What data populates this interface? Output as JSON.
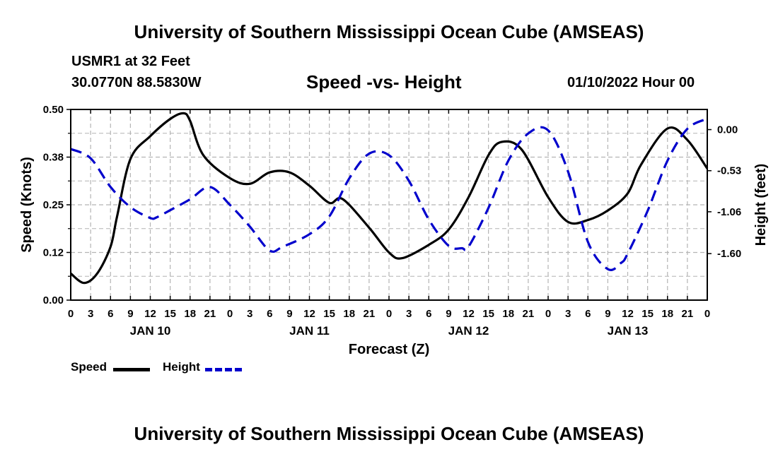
{
  "header": {
    "title": "University of Southern Mississippi Ocean Cube (AMSEAS)",
    "station": "USMR1 at 32 Feet",
    "coords": "30.0770N  88.5830W",
    "subtitle": "Speed -vs- Height",
    "datetime": "01/10/2022 Hour 00"
  },
  "footer": {
    "title": "University of Southern Mississippi Ocean Cube (AMSEAS)"
  },
  "legend": {
    "speed_label": "Speed",
    "height_label": "Height"
  },
  "colors": {
    "speed": "#000000",
    "height": "#0000cc",
    "grid": "#b4b4b4"
  },
  "chart_data": {
    "type": "line",
    "xlabel": "Forecast (Z)",
    "ylabel": "Speed (Knots)",
    "y2label": "Height (feet)",
    "xlim": [
      0,
      96
    ],
    "ylim": [
      0,
      0.5
    ],
    "y2lim": [
      -2.2,
      0.26
    ],
    "x_tick_labels": [
      "0",
      "3",
      "6",
      "9",
      "12",
      "15",
      "18",
      "21",
      "0",
      "3",
      "6",
      "9",
      "12",
      "15",
      "18",
      "21",
      "0",
      "3",
      "6",
      "9",
      "12",
      "15",
      "18",
      "21",
      "0",
      "3",
      "6",
      "9",
      "12",
      "15",
      "18",
      "21",
      "0"
    ],
    "day_labels": [
      {
        "x": 12,
        "label": "JAN 10"
      },
      {
        "x": 36,
        "label": "JAN 11"
      },
      {
        "x": 60,
        "label": "JAN 12"
      },
      {
        "x": 84,
        "label": "JAN 13"
      }
    ],
    "y_ticks": [
      {
        "value": 0.0,
        "label": "0.00"
      },
      {
        "value": 0.125,
        "label": "0.12"
      },
      {
        "value": 0.25,
        "label": "0.25"
      },
      {
        "value": 0.375,
        "label": "0.38"
      },
      {
        "value": 0.5,
        "label": "0.50"
      }
    ],
    "y2_ticks": [
      {
        "value": 0.0,
        "label": "0.00"
      },
      {
        "value": -0.53,
        "label": "-0.53"
      },
      {
        "value": -1.06,
        "label": "-1.06"
      },
      {
        "value": -1.6,
        "label": "-1.60"
      }
    ],
    "series": [
      {
        "name": "Speed",
        "axis": "left",
        "x": [
          0,
          2,
          4,
          6,
          7,
          9,
          12,
          15,
          17,
          18,
          20,
          24,
          27,
          30,
          33,
          36,
          39,
          41,
          45,
          48,
          50,
          54,
          57,
          60,
          63,
          65,
          68,
          72,
          75,
          78,
          81,
          84,
          86,
          90,
          93,
          96
        ],
        "values": [
          0.07,
          0.045,
          0.07,
          0.14,
          0.22,
          0.37,
          0.43,
          0.475,
          0.49,
          0.47,
          0.38,
          0.32,
          0.305,
          0.335,
          0.335,
          0.3,
          0.255,
          0.265,
          0.19,
          0.125,
          0.11,
          0.145,
          0.185,
          0.27,
          0.38,
          0.415,
          0.395,
          0.27,
          0.205,
          0.21,
          0.235,
          0.28,
          0.355,
          0.45,
          0.42,
          0.345
        ]
      },
      {
        "name": "Height",
        "axis": "right",
        "x": [
          0,
          3,
          6,
          9,
          12,
          13,
          15,
          18,
          21,
          24,
          27,
          30,
          32,
          36,
          39,
          42,
          45,
          48,
          51,
          54,
          57,
          59,
          60,
          63,
          66,
          69,
          72,
          75,
          78,
          81,
          83,
          84,
          87,
          90,
          93,
          96
        ],
        "values": [
          -0.25,
          -0.37,
          -0.74,
          -1.0,
          -1.14,
          -1.13,
          -1.04,
          -0.9,
          -0.74,
          -0.97,
          -1.25,
          -1.56,
          -1.51,
          -1.35,
          -1.12,
          -0.63,
          -0.31,
          -0.33,
          -0.66,
          -1.16,
          -1.5,
          -1.53,
          -1.51,
          -1.01,
          -0.4,
          -0.05,
          -0.01,
          -0.54,
          -1.45,
          -1.8,
          -1.72,
          -1.6,
          -1.05,
          -0.4,
          0.01,
          0.14
        ]
      }
    ]
  }
}
